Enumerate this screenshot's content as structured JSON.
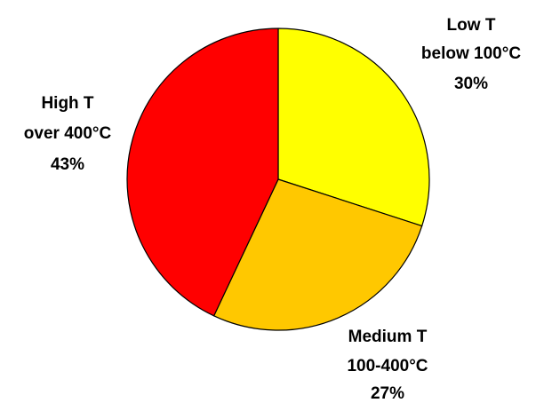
{
  "chart_data": {
    "type": "pie",
    "title": "",
    "start": "12 o'clock",
    "direction": "clockwise",
    "slices": [
      {
        "label": [
          "Low T",
          "below 100°C",
          "30%"
        ],
        "value": 30,
        "color": "#FFFF00"
      },
      {
        "label": [
          "Medium T",
          "100-400°C",
          "27%"
        ],
        "value": 27,
        "color": "#FFC800"
      },
      {
        "label": [
          "High T",
          "over 400°C",
          "43%"
        ],
        "value": 43,
        "color": "#FF0000"
      }
    ]
  }
}
